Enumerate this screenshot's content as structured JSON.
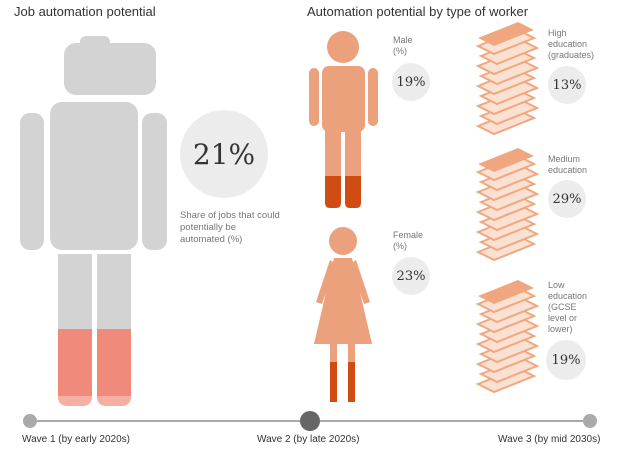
{
  "chart_data": [
    {
      "type": "infographic",
      "title": "Job automation potential",
      "value": "21%",
      "value_number": 21,
      "caption": "Share of jobs that could potentially be automated (%)"
    },
    {
      "type": "infographic",
      "title": "Automation potential by type of worker",
      "gender": [
        {
          "label": "Male (%)",
          "label_lines": [
            "Male",
            "(%)"
          ],
          "value": "19%",
          "value_number": 19
        },
        {
          "label": "Female (%)",
          "label_lines": [
            "Female",
            "(%)"
          ],
          "value": "23%",
          "value_number": 23
        }
      ],
      "education": [
        {
          "label": "High education (graduates)",
          "label_lines": [
            "High",
            "education",
            "(graduates)"
          ],
          "value": "13%",
          "value_number": 13
        },
        {
          "label": "Medium education",
          "label_lines": [
            "Medium",
            "education"
          ],
          "value": "29%",
          "value_number": 29
        },
        {
          "label": "Low education (GCSE level or lower)",
          "label_lines": [
            "Low",
            "education",
            "(GCSE",
            "level or",
            "lower)"
          ],
          "value": "19%",
          "value_number": 19
        }
      ]
    }
  ],
  "timeline": {
    "waves": [
      "Wave 1 (by early 2020s)",
      "Wave 2 (by late 2020s)",
      "Wave 3 (by mid 2030s)"
    ],
    "selected_index": 1
  },
  "colors": {
    "body_grey": "#d3d3d3",
    "robot_accent": "#f08a7a",
    "skin": "#eaa17c",
    "dark_orange": "#d14c12",
    "book": "#f0a77f",
    "circle_bg": "#ececec",
    "timeline_dot": "#aaaaaa",
    "timeline_selected": "#666666"
  }
}
